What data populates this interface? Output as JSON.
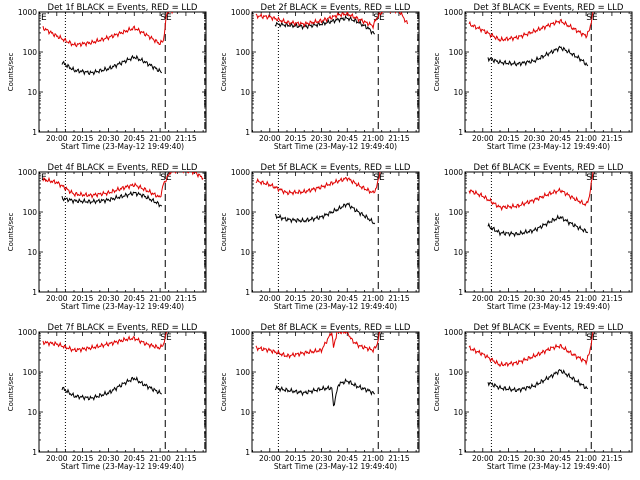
{
  "chart_data": [
    {
      "type": "line",
      "title": "Det 1f BLACK = Events, RED = LLD",
      "xlabel": "Start Time (23-May-12 19:49:40)",
      "ylabel": "Counts/sec",
      "x_ticks": [
        "20:00",
        "20:15",
        "20:30",
        "20:45",
        "21:00",
        "21:15"
      ],
      "y_ticks": [
        "1",
        "10",
        "100",
        "1000"
      ],
      "ylim": [
        1,
        1000
      ],
      "y_scale": "log",
      "markers": {
        "dotted": "20:05",
        "dashed": [
          "21:03",
          "21:26"
        ],
        "labels": [
          "E",
          "SE"
        ]
      },
      "series": [
        {
          "color": "#000000",
          "x": [
            "20:03",
            "20:10",
            "20:20",
            "20:30",
            "20:40",
            "20:45",
            "20:50",
            "20:57",
            "21:00",
            "21:01"
          ],
          "values": [
            55,
            35,
            30,
            38,
            60,
            75,
            60,
            40,
            33,
            30
          ]
        },
        {
          "color": "#e00000",
          "x": [
            "19:52",
            "20:00",
            "20:10",
            "20:20",
            "20:30",
            "20:40",
            "20:45",
            "20:52",
            "21:00",
            "21:02",
            "21:04",
            "21:08"
          ],
          "values": [
            400,
            250,
            150,
            170,
            230,
            330,
            400,
            270,
            160,
            200,
            1000,
            1100
          ]
        }
      ]
    },
    {
      "type": "line",
      "title": "Det 2f BLACK = Events, RED = LLD",
      "xlabel": "Start Time (23-May-12 19:49:40)",
      "ylabel": "Counts/sec",
      "x_ticks": [
        "20:00",
        "20:15",
        "20:30",
        "20:45",
        "21:00",
        "21:15"
      ],
      "y_ticks": [
        "1",
        "10",
        "100",
        "1000"
      ],
      "ylim": [
        1,
        1000
      ],
      "y_scale": "log",
      "markers": {
        "dotted": "20:05",
        "dashed": [
          "21:03",
          "21:26"
        ],
        "labels": [
          "SE"
        ]
      },
      "series": [
        {
          "color": "#000000",
          "x": [
            "20:03",
            "20:10",
            "20:20",
            "20:30",
            "20:40",
            "20:45",
            "20:50",
            "20:57",
            "21:00",
            "21:01"
          ],
          "values": [
            500,
            470,
            430,
            500,
            650,
            700,
            600,
            400,
            300,
            280
          ]
        },
        {
          "color": "#e00000",
          "x": [
            "19:52",
            "20:00",
            "20:10",
            "20:20",
            "20:30",
            "20:40",
            "20:45",
            "20:52",
            "21:00",
            "21:02",
            "21:06",
            "21:10",
            "21:15",
            "21:20"
          ],
          "values": [
            800,
            750,
            550,
            500,
            600,
            850,
            900,
            650,
            450,
            700,
            1100,
            1100,
            1100,
            500
          ]
        }
      ]
    },
    {
      "type": "line",
      "title": "Det 3f BLACK = Events, RED = LLD",
      "xlabel": "Start Time (23-May-12 19:49:40)",
      "ylabel": "Counts/sec",
      "x_ticks": [
        "20:00",
        "20:15",
        "20:30",
        "20:45",
        "21:00",
        "21:15"
      ],
      "y_ticks": [
        "1",
        "10",
        "100",
        "1000"
      ],
      "ylim": [
        1,
        1000
      ],
      "y_scale": "log",
      "markers": {
        "dotted": "20:05",
        "dashed": [
          "21:03"
        ],
        "labels": [
          "SE"
        ]
      },
      "series": [
        {
          "color": "#000000",
          "x": [
            "20:03",
            "20:10",
            "20:20",
            "20:30",
            "20:40",
            "20:45",
            "20:50",
            "20:57",
            "21:00",
            "21:01"
          ],
          "values": [
            70,
            55,
            50,
            60,
            100,
            130,
            100,
            65,
            50,
            45
          ]
        },
        {
          "color": "#e00000",
          "x": [
            "19:52",
            "20:00",
            "20:10",
            "20:20",
            "20:30",
            "20:40",
            "20:45",
            "20:52",
            "21:00",
            "21:02",
            "21:04"
          ],
          "values": [
            500,
            350,
            200,
            230,
            330,
            500,
            600,
            400,
            250,
            350,
            1000
          ]
        }
      ]
    },
    {
      "type": "line",
      "title": "Det 4f BLACK = Events, RED = LLD",
      "xlabel": "Start Time (23-May-12 19:49:40)",
      "ylabel": "Counts/sec",
      "x_ticks": [
        "20:00",
        "20:15",
        "20:30",
        "20:45",
        "21:00",
        "21:15"
      ],
      "y_ticks": [
        "1",
        "10",
        "100",
        "1000"
      ],
      "ylim": [
        1,
        1000
      ],
      "y_scale": "log",
      "markers": {
        "dotted": "20:05",
        "dashed": [
          "21:03",
          "21:26"
        ],
        "labels": [
          "E",
          "SE"
        ]
      },
      "series": [
        {
          "color": "#000000",
          "x": [
            "20:03",
            "20:10",
            "20:20",
            "20:30",
            "20:40",
            "20:45",
            "20:50",
            "20:57",
            "21:00",
            "21:01"
          ],
          "values": [
            220,
            190,
            180,
            200,
            260,
            300,
            260,
            180,
            150,
            140
          ]
        },
        {
          "color": "#e00000",
          "x": [
            "19:52",
            "20:00",
            "20:10",
            "20:20",
            "20:30",
            "20:40",
            "20:45",
            "20:52",
            "21:00",
            "21:02",
            "21:06",
            "21:12",
            "21:20",
            "21:25"
          ],
          "values": [
            650,
            550,
            280,
            260,
            300,
            420,
            480,
            350,
            230,
            500,
            1000,
            1100,
            1000,
            700
          ]
        }
      ]
    },
    {
      "type": "line",
      "title": "Det 5f BLACK = Events, RED = LLD",
      "xlabel": "Start Time (23-May-12 19:49:40)",
      "ylabel": "Counts/sec",
      "x_ticks": [
        "20:00",
        "20:15",
        "20:30",
        "20:45",
        "21:00",
        "21:15"
      ],
      "y_ticks": [
        "1",
        "10",
        "100",
        "1000"
      ],
      "ylim": [
        1,
        1000
      ],
      "y_scale": "log",
      "markers": {
        "dotted": "20:05",
        "dashed": [
          "21:03",
          "21:26"
        ],
        "labels": [
          "SE"
        ]
      },
      "series": [
        {
          "color": "#000000",
          "x": [
            "20:03",
            "20:10",
            "20:20",
            "20:30",
            "20:40",
            "20:45",
            "20:50",
            "20:57",
            "21:00",
            "21:01"
          ],
          "values": [
            80,
            65,
            60,
            75,
            120,
            160,
            110,
            70,
            55,
            50
          ]
        },
        {
          "color": "#e00000",
          "x": [
            "19:52",
            "20:00",
            "20:10",
            "20:20",
            "20:30",
            "20:40",
            "20:45",
            "20:52",
            "21:00",
            "21:02",
            "21:04"
          ],
          "values": [
            600,
            480,
            300,
            320,
            420,
            600,
            700,
            450,
            300,
            400,
            1000
          ]
        }
      ]
    },
    {
      "type": "line",
      "title": "Det 6f BLACK = Events, RED = LLD",
      "xlabel": "Start Time (23-May-12 19:49:40)",
      "ylabel": "Counts/sec",
      "x_ticks": [
        "20:00",
        "20:15",
        "20:30",
        "20:45",
        "21:00",
        "21:15"
      ],
      "y_ticks": [
        "1",
        "10",
        "100",
        "1000"
      ],
      "ylim": [
        1,
        1000
      ],
      "y_scale": "log",
      "markers": {
        "dotted": "20:05",
        "dashed": [
          "21:03"
        ],
        "labels": [
          "SE"
        ]
      },
      "series": [
        {
          "color": "#000000",
          "x": [
            "20:03",
            "20:10",
            "20:20",
            "20:30",
            "20:40",
            "20:45",
            "20:50",
            "20:57",
            "21:00",
            "21:01"
          ],
          "values": [
            45,
            30,
            28,
            35,
            60,
            75,
            55,
            38,
            33,
            30
          ]
        },
        {
          "color": "#e00000",
          "x": [
            "19:52",
            "20:00",
            "20:10",
            "20:20",
            "20:30",
            "20:40",
            "20:45",
            "20:52",
            "21:00",
            "21:02",
            "21:04"
          ],
          "values": [
            350,
            250,
            130,
            140,
            200,
            300,
            350,
            230,
            150,
            250,
            1000
          ]
        }
      ]
    },
    {
      "type": "line",
      "title": "Det 7f BLACK = Events, RED = LLD",
      "xlabel": "Start Time (23-May-12 19:49:40)",
      "ylabel": "Counts/sec",
      "x_ticks": [
        "20:00",
        "20:15",
        "20:30",
        "20:45",
        "21:00",
        "21:15"
      ],
      "y_ticks": [
        "1",
        "10",
        "100",
        "1000"
      ],
      "ylim": [
        1,
        1000
      ],
      "y_scale": "log",
      "markers": {
        "dotted": "20:05",
        "dashed": [
          "21:03",
          "21:26"
        ],
        "labels": [
          "SE"
        ]
      },
      "series": [
        {
          "color": "#000000",
          "x": [
            "20:03",
            "20:10",
            "20:20",
            "20:30",
            "20:40",
            "20:45",
            "20:50",
            "20:57",
            "21:00",
            "21:01"
          ],
          "values": [
            40,
            25,
            22,
            30,
            55,
            70,
            50,
            35,
            30,
            28
          ]
        },
        {
          "color": "#e00000",
          "x": [
            "19:52",
            "20:00",
            "20:10",
            "20:20",
            "20:30",
            "20:40",
            "20:45",
            "20:52",
            "21:00",
            "21:02",
            "21:04"
          ],
          "values": [
            550,
            500,
            350,
            400,
            500,
            650,
            700,
            500,
            400,
            500,
            1000
          ]
        }
      ]
    },
    {
      "type": "line",
      "title": "Det 8f BLACK = Events, RED = LLD",
      "xlabel": "Start Time (23-May-12 19:49:40)",
      "ylabel": "Counts/sec",
      "x_ticks": [
        "20:00",
        "20:15",
        "20:30",
        "20:45",
        "21:00",
        "21:15"
      ],
      "y_ticks": [
        "1",
        "10",
        "100",
        "1000"
      ],
      "ylim": [
        1,
        1000
      ],
      "y_scale": "log",
      "markers": {
        "dotted": "20:05",
        "dashed": [
          "21:03",
          "21:26"
        ],
        "labels": [
          "SE"
        ]
      },
      "series": [
        {
          "color": "#000000",
          "x": [
            "20:03",
            "20:10",
            "20:20",
            "20:30",
            "20:36",
            "20:37",
            "20:40",
            "20:45",
            "20:50",
            "20:57",
            "21:00",
            "21:01"
          ],
          "values": [
            40,
            35,
            30,
            38,
            40,
            14,
            50,
            60,
            45,
            35,
            30,
            28
          ]
        },
        {
          "color": "#e00000",
          "x": [
            "19:52",
            "20:00",
            "20:10",
            "20:20",
            "20:30",
            "20:36",
            "20:37",
            "20:39",
            "20:45",
            "20:48",
            "20:52",
            "21:00",
            "21:02",
            "21:04"
          ],
          "values": [
            400,
            350,
            250,
            300,
            350,
            1000,
            400,
            1000,
            1000,
            600,
            450,
            350,
            450,
            1000
          ]
        }
      ]
    },
    {
      "type": "line",
      "title": "Det 9f BLACK = Events, RED = LLD",
      "xlabel": "Start Time (23-May-12 19:49:40)",
      "ylabel": "Counts/sec",
      "x_ticks": [
        "20:00",
        "20:15",
        "20:30",
        "20:45",
        "21:00",
        "21:15"
      ],
      "y_ticks": [
        "1",
        "10",
        "100",
        "1000"
      ],
      "ylim": [
        1,
        1000
      ],
      "y_scale": "log",
      "markers": {
        "dotted": "20:05",
        "dashed": [
          "21:03"
        ],
        "labels": [
          "SE"
        ]
      },
      "series": [
        {
          "color": "#000000",
          "x": [
            "20:03",
            "20:10",
            "20:20",
            "20:30",
            "20:40",
            "20:45",
            "20:50",
            "20:57",
            "21:00",
            "21:01"
          ],
          "values": [
            55,
            40,
            35,
            45,
            80,
            110,
            80,
            50,
            40,
            38
          ]
        },
        {
          "color": "#e00000",
          "x": [
            "19:52",
            "20:00",
            "20:10",
            "20:20",
            "20:30",
            "20:40",
            "20:45",
            "20:52",
            "21:00",
            "21:02",
            "21:04"
          ],
          "values": [
            400,
            280,
            150,
            170,
            250,
            400,
            450,
            280,
            180,
            300,
            1000
          ]
        }
      ]
    }
  ]
}
